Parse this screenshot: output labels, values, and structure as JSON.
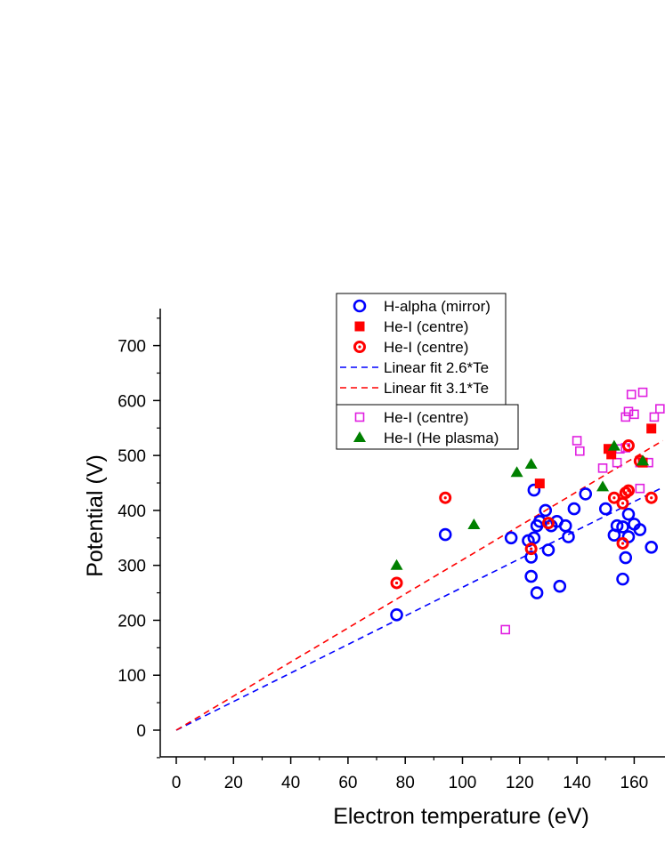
{
  "chart_data": {
    "type": "scatter",
    "title": "",
    "xlabel": "Electron temperature (eV)",
    "ylabel": "Potential (V)",
    "xlim": [
      -10,
      170
    ],
    "ylim": [
      -50,
      770
    ],
    "xticks": [
      0,
      20,
      40,
      60,
      80,
      100,
      120,
      140,
      160
    ],
    "yticks": [
      0,
      100,
      200,
      300,
      400,
      500,
      600,
      700
    ],
    "grid": false,
    "series": [
      {
        "name": "H-alpha (mirror)",
        "marker": "circle-open",
        "color": "#0000ff",
        "points": [
          [
            77,
            210
          ],
          [
            94,
            356
          ],
          [
            117,
            350
          ],
          [
            123,
            345
          ],
          [
            124,
            315
          ],
          [
            124,
            280
          ],
          [
            125,
            437
          ],
          [
            125,
            350
          ],
          [
            126,
            250
          ],
          [
            126,
            372
          ],
          [
            127,
            380
          ],
          [
            129,
            400
          ],
          [
            130,
            328
          ],
          [
            131,
            372
          ],
          [
            133,
            380
          ],
          [
            134,
            262
          ],
          [
            136,
            372
          ],
          [
            137,
            352
          ],
          [
            139,
            403
          ],
          [
            143,
            430
          ],
          [
            150,
            403
          ],
          [
            153,
            355
          ],
          [
            154,
            372
          ],
          [
            156,
            275
          ],
          [
            156,
            370
          ],
          [
            157,
            314
          ],
          [
            158,
            352
          ],
          [
            158,
            393
          ],
          [
            160,
            375
          ],
          [
            162,
            365
          ],
          [
            166,
            333
          ]
        ]
      },
      {
        "name": "He-I (centre)",
        "marker": "square-filled",
        "color": "#ff0000",
        "points": [
          [
            127,
            449
          ],
          [
            151,
            512
          ],
          [
            152,
            502
          ],
          [
            163,
            487
          ],
          [
            166,
            549
          ]
        ]
      },
      {
        "name": "He-I (centre)",
        "marker": "circle-dot",
        "color": "#ff0000",
        "points": [
          [
            77,
            268
          ],
          [
            94,
            423
          ],
          [
            124,
            330
          ],
          [
            130,
            377
          ],
          [
            153,
            423
          ],
          [
            156,
            340
          ],
          [
            156,
            413
          ],
          [
            157,
            432
          ],
          [
            158,
            436
          ],
          [
            158,
            518
          ],
          [
            162,
            490
          ],
          [
            166,
            423
          ]
        ]
      },
      {
        "name": "He-I (centre)",
        "marker": "square-open",
        "color": "#e020e0",
        "points": [
          [
            115,
            183
          ],
          [
            140,
            527
          ],
          [
            141,
            508
          ],
          [
            149,
            477
          ],
          [
            154,
            487
          ],
          [
            155,
            512
          ],
          [
            157,
            570
          ],
          [
            157,
            514
          ],
          [
            158,
            580
          ],
          [
            159,
            611
          ],
          [
            160,
            575
          ],
          [
            162,
            487
          ],
          [
            162,
            440
          ],
          [
            163,
            615
          ],
          [
            165,
            487
          ],
          [
            167,
            570
          ],
          [
            169,
            585
          ]
        ]
      },
      {
        "name": "He-I (He plasma)",
        "marker": "triangle-filled",
        "color": "#008000",
        "points": [
          [
            77,
            300
          ],
          [
            104,
            374
          ],
          [
            119,
            469
          ],
          [
            124,
            484
          ],
          [
            149,
            443
          ],
          [
            153,
            517
          ],
          [
            163,
            490
          ]
        ]
      }
    ],
    "fits": [
      {
        "name": "Linear fit 2.6*Te",
        "slope": 2.6,
        "color": "#0000ff",
        "x_range": [
          0,
          170
        ]
      },
      {
        "name": "Linear fit 3.1*Te",
        "slope": 3.1,
        "color": "#ff0000",
        "x_range": [
          0,
          170
        ]
      }
    ],
    "legend": {
      "placement": "top-center",
      "group1": [
        "H-alpha (mirror)",
        "He-I (centre)",
        "He-I (centre)",
        "Linear fit 2.6*Te",
        "Linear fit 3.1*Te"
      ],
      "group2": [
        "He-I (centre)",
        "He-I (He plasma)"
      ]
    }
  }
}
